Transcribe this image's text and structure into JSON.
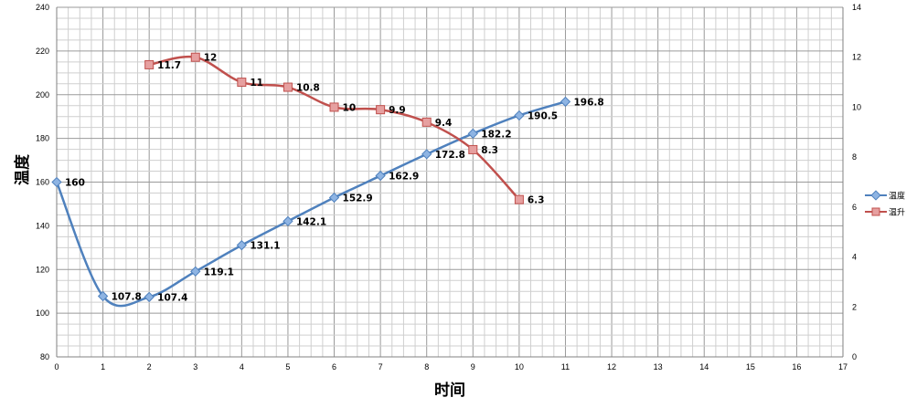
{
  "chart_data": {
    "type": "line",
    "title": "",
    "xlabel": "时间",
    "ylabel": "温度",
    "xlim": [
      0,
      17
    ],
    "ylim": [
      80,
      240
    ],
    "y2lim": [
      0,
      14
    ],
    "x_ticks": [
      "0",
      "1",
      "2",
      "3",
      "4",
      "5",
      "6",
      "7",
      "8",
      "9",
      "10",
      "11",
      "12",
      "13",
      "14",
      "15",
      "16",
      "17"
    ],
    "y_ticks": [
      "80",
      "100",
      "120",
      "140",
      "160",
      "180",
      "200",
      "220",
      "240"
    ],
    "y2_ticks": [
      "0",
      "2",
      "4",
      "6",
      "8",
      "10",
      "12",
      "14"
    ],
    "grid": true,
    "legend_position": "right",
    "series": [
      {
        "name": "温度",
        "axis": "left",
        "color": "#4F81BD",
        "marker": "diamond",
        "smooth": true,
        "x": [
          0,
          1,
          2,
          3,
          4,
          5,
          6,
          7,
          8,
          9,
          10,
          11
        ],
        "values": [
          160,
          107.8,
          107.4,
          119.1,
          131.1,
          142.1,
          152.9,
          162.9,
          172.8,
          182.2,
          190.5,
          196.8
        ],
        "labels": [
          "160",
          "107.8",
          "107.4",
          "119.1",
          "131.1",
          "142.1",
          "152.9",
          "162.9",
          "172.8",
          "182.2",
          "190.5",
          "196.8"
        ]
      },
      {
        "name": "温升",
        "axis": "right",
        "color": "#C0504D",
        "marker": "square",
        "smooth": true,
        "x": [
          2,
          3,
          4,
          5,
          6,
          7,
          8,
          9,
          10
        ],
        "values": [
          11.7,
          12,
          11,
          10.8,
          10,
          9.9,
          9.4,
          8.3,
          6.3
        ],
        "labels": [
          "11.7",
          "12",
          "11",
          "10.8",
          "10",
          "9.9",
          "9.4",
          "8.3",
          "6.3"
        ]
      }
    ]
  }
}
